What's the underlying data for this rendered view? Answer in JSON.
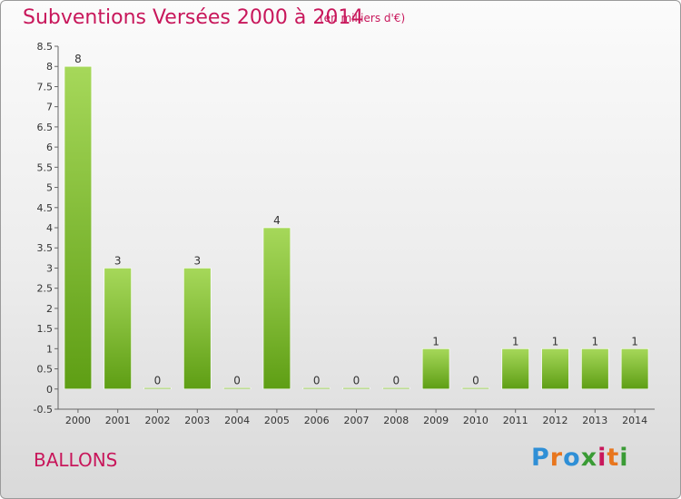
{
  "header": {
    "title": "Subventions Versées 2000 à 2014",
    "subtitle": "(en milliers d'€)"
  },
  "footer": {
    "commune": "BALLONS",
    "logo": {
      "letters": [
        "P",
        "r",
        "o",
        "x",
        "i",
        "t",
        "i"
      ],
      "colors": [
        "#2f8fd6",
        "#e8761e",
        "#2f8fd6",
        "#3a9b35",
        "#c8175b",
        "#e8761e",
        "#3a9b35"
      ]
    }
  },
  "chart_data": {
    "type": "bar",
    "categories": [
      "2000",
      "2001",
      "2002",
      "2003",
      "2004",
      "2005",
      "2006",
      "2007",
      "2008",
      "2009",
      "2010",
      "2011",
      "2012",
      "2013",
      "2014"
    ],
    "values": [
      8,
      3,
      0,
      3,
      0,
      4,
      0,
      0,
      0,
      1,
      0,
      1,
      1,
      1,
      1
    ],
    "data_labels": [
      "8",
      "3",
      "0",
      "3",
      "0",
      "4",
      "0",
      "0",
      "0",
      "1",
      "0",
      "1",
      "1",
      "1",
      "1"
    ],
    "yticks": [
      "-0.5",
      "0",
      "0.5",
      "1",
      "1.5",
      "2",
      "2.5",
      "3",
      "3.5",
      "4",
      "4.5",
      "5",
      "5.5",
      "6",
      "6.5",
      "7",
      "7.5",
      "8",
      "8.5"
    ],
    "ylim": [
      -0.5,
      8.5
    ],
    "grid": false,
    "bar_color_top": "#a6d85a",
    "bar_color_bottom": "#5e9e14"
  }
}
